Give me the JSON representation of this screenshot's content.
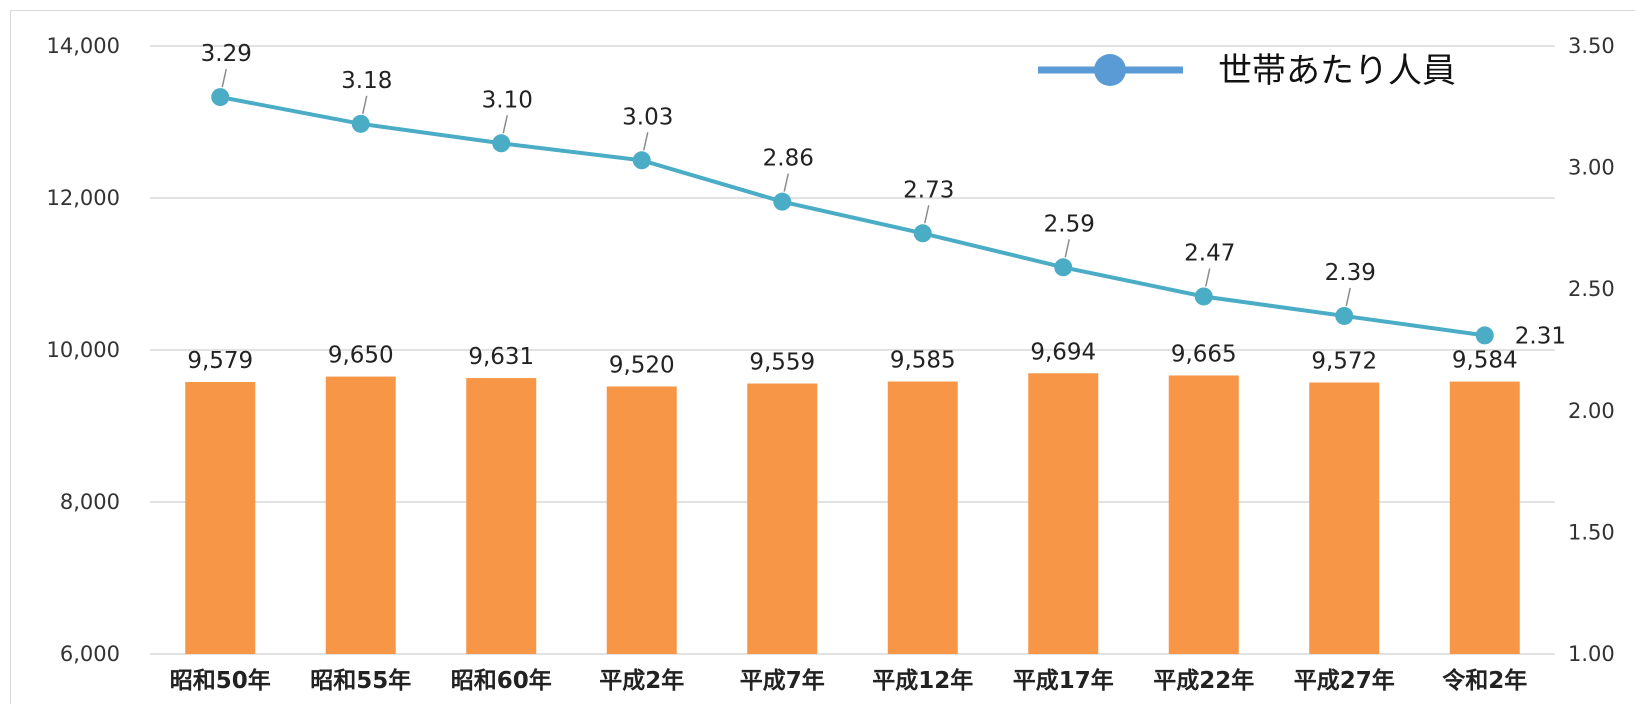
{
  "chart_data": {
    "type": "bar+line",
    "categories": [
      "昭和50年",
      "昭和55年",
      "昭和60年",
      "平成2年",
      "平成7年",
      "平成12年",
      "平成17年",
      "平成22年",
      "平成27年",
      "令和2年"
    ],
    "series": [
      {
        "type": "bar",
        "axis": "left",
        "values": [
          9579,
          9650,
          9631,
          9520,
          9559,
          9585,
          9694,
          9665,
          9572,
          9584
        ],
        "labels": [
          "9,579",
          "9,650",
          "9,631",
          "9,520",
          "9,559",
          "9,585",
          "9,694",
          "9,665",
          "9,572",
          "9,584"
        ],
        "color": "#F79646"
      },
      {
        "type": "line",
        "axis": "right",
        "name": "世帯あたり人員",
        "values": [
          3.29,
          3.18,
          3.1,
          3.03,
          2.86,
          2.73,
          2.59,
          2.47,
          2.39,
          2.31
        ],
        "labels": [
          "3.29",
          "3.18",
          "3.10",
          "3.03",
          "2.86",
          "2.73",
          "2.59",
          "2.47",
          "2.39",
          "2.31"
        ],
        "color": "#4BACC6"
      }
    ],
    "y_left": {
      "ylim": [
        6000,
        14000
      ],
      "ticks": [
        6000,
        8000,
        10000,
        12000,
        14000
      ],
      "tick_labels": [
        "6,000",
        "8,000",
        "10,000",
        "12,000",
        "14,000"
      ]
    },
    "y_right": {
      "ylim": [
        1.0,
        3.5
      ],
      "ticks": [
        1.0,
        1.5,
        2.0,
        2.5,
        3.0,
        3.5
      ],
      "tick_labels": [
        "1.00",
        "1.50",
        "2.00",
        "2.50",
        "3.00",
        "3.50"
      ]
    },
    "grid": true,
    "legend": {
      "position": "top-right",
      "entries": [
        "世帯あたり人員"
      ],
      "color": "#5B9BD5"
    },
    "gridline_color": "#d9d9d9"
  }
}
